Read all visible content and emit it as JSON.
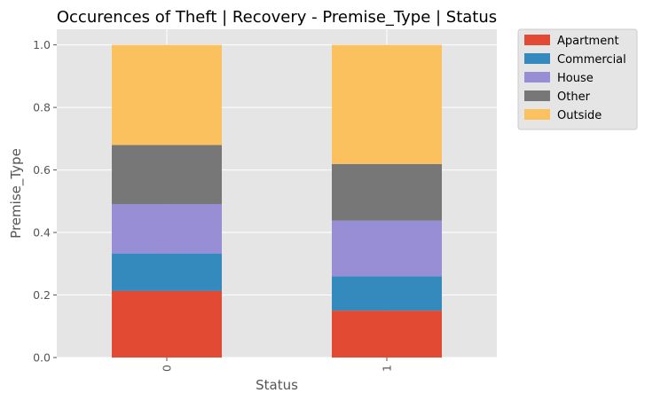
{
  "chart_data": {
    "type": "bar",
    "stacked": true,
    "title": "Occurences of Theft | Recovery - Premise_Type | Status",
    "xlabel": "Status",
    "ylabel": "Premise_Type",
    "categories": [
      "0",
      "1"
    ],
    "ylim": [
      0,
      1.05
    ],
    "yticks": [
      "0.0",
      "0.2",
      "0.4",
      "0.6",
      "0.8",
      "1.0"
    ],
    "grid": true,
    "legend_position": "outside-top-right",
    "series": [
      {
        "name": "Apartment",
        "color": "#E24A33",
        "values": [
          0.213,
          0.15
        ]
      },
      {
        "name": "Commercial",
        "color": "#348ABD",
        "values": [
          0.12,
          0.11
        ]
      },
      {
        "name": "House",
        "color": "#988ED5",
        "values": [
          0.158,
          0.178
        ]
      },
      {
        "name": "Other",
        "color": "#777777",
        "values": [
          0.189,
          0.181
        ]
      },
      {
        "name": "Outside",
        "color": "#FBC15E",
        "values": [
          0.32,
          0.381
        ]
      }
    ]
  }
}
